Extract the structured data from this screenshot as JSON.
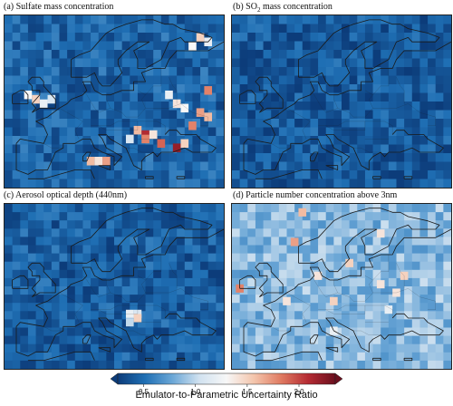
{
  "colors": {
    "cmap": [
      "#0c3c7a",
      "#1f6fb4",
      "#6aa6d6",
      "#d1e2f0",
      "#f7f7f7",
      "#f4c6ad",
      "#e07b62",
      "#b52b33",
      "#6b0f1e"
    ],
    "coastline": "#1a1a1a"
  },
  "chart_data": [
    {
      "type": "heatmap",
      "panel": "a",
      "title": "(a) Sulfate mass concentration",
      "base_ratio": 0.45,
      "highlights": [
        {
          "lon": -6,
          "lat": 54,
          "ratio": 1.3
        },
        {
          "lon": -4,
          "lat": 53,
          "ratio": 1.5
        },
        {
          "lon": -2,
          "lat": 52,
          "ratio": 1.2
        },
        {
          "lon": 0,
          "lat": 53,
          "ratio": 1.1
        },
        {
          "lon": 10,
          "lat": 39,
          "ratio": 1.6
        },
        {
          "lon": 12,
          "lat": 39,
          "ratio": 1.4
        },
        {
          "lon": 14,
          "lat": 39,
          "ratio": 1.7
        },
        {
          "lon": 36,
          "lat": 65,
          "ratio": 1.3
        },
        {
          "lon": 38,
          "lat": 67,
          "ratio": 1.5
        },
        {
          "lon": 40,
          "lat": 66,
          "ratio": 1.2
        },
        {
          "lon": 30,
          "lat": 54,
          "ratio": 1.2
        },
        {
          "lon": 32,
          "lat": 52,
          "ratio": 1.4
        },
        {
          "lon": 34,
          "lat": 51,
          "ratio": 1.3
        },
        {
          "lon": 38,
          "lat": 50,
          "ratio": 1.7
        },
        {
          "lon": 40,
          "lat": 49,
          "ratio": 1.6
        },
        {
          "lon": 36,
          "lat": 47,
          "ratio": 1.8
        },
        {
          "lon": 22,
          "lat": 46,
          "ratio": 1.6
        },
        {
          "lon": 24,
          "lat": 45,
          "ratio": 2.1
        },
        {
          "lon": 24,
          "lat": 44,
          "ratio": 1.8
        },
        {
          "lon": 26,
          "lat": 45,
          "ratio": 1.4
        },
        {
          "lon": 28,
          "lat": 43,
          "ratio": 1.9
        },
        {
          "lon": 20,
          "lat": 44,
          "ratio": 1.1
        },
        {
          "lon": 32,
          "lat": 42,
          "ratio": 2.2
        },
        {
          "lon": 34,
          "lat": 43,
          "ratio": 1.5
        },
        {
          "lon": 40,
          "lat": 55,
          "ratio": 1.8
        }
      ]
    },
    {
      "type": "heatmap",
      "panel": "b",
      "title_main": "(b) SO",
      "title_sub": "2",
      "title_rest": " mass concentration",
      "base_ratio": 0.4,
      "highlights": []
    },
    {
      "type": "heatmap",
      "panel": "c",
      "title": "(c) Aerosol optical depth (440nm)",
      "base_ratio": 0.42,
      "highlights": [
        {
          "lon": 20,
          "lat": 46,
          "ratio": 1.2
        },
        {
          "lon": 22,
          "lat": 46,
          "ratio": 1.1
        },
        {
          "lon": 22,
          "lat": 45,
          "ratio": 1.5
        },
        {
          "lon": 20,
          "lat": 44,
          "ratio": 1.0
        }
      ]
    },
    {
      "type": "heatmap",
      "panel": "d",
      "title": "(d) Particle number concentration above 3nm",
      "base_ratio": 0.85,
      "highlights": [
        {
          "lon": 6,
          "lat": 70,
          "ratio": 1.6
        },
        {
          "lon": 4,
          "lat": 63,
          "ratio": 1.7
        },
        {
          "lon": 26,
          "lat": 65,
          "ratio": 1.4
        },
        {
          "lon": 18,
          "lat": 58,
          "ratio": 1.5
        },
        {
          "lon": -10,
          "lat": 52,
          "ratio": 1.8
        },
        {
          "lon": 10,
          "lat": 55,
          "ratio": 1.4
        },
        {
          "lon": 32,
          "lat": 55,
          "ratio": 1.5
        },
        {
          "lon": 26,
          "lat": 53,
          "ratio": 1.4
        },
        {
          "lon": 30,
          "lat": 51,
          "ratio": 1.4
        },
        {
          "lon": 14,
          "lat": 49,
          "ratio": 1.5
        },
        {
          "lon": 2,
          "lat": 49,
          "ratio": 1.4
        },
        {
          "lon": 28,
          "lat": 47,
          "ratio": 1.2
        },
        {
          "lon": 14,
          "lat": 42,
          "ratio": 1.2
        }
      ]
    }
  ],
  "colorbar": {
    "min": 0.25,
    "max": 2.35,
    "ticks": [
      "0.5",
      "1.0",
      "1.5",
      "2.0"
    ],
    "tick_values": [
      0.5,
      1.0,
      1.5,
      2.0
    ],
    "label": "Emulator-to-Parametric Uncertainty Ratio"
  }
}
